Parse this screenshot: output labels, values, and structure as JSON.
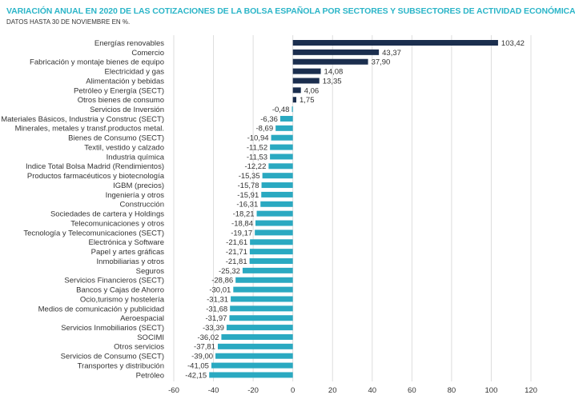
{
  "chart_data": {
    "type": "bar",
    "orientation": "horizontal",
    "title": "VARIACIÓN ANUAL EN 2020 DE LAS COTIZACIONES DE LA BOLSA ESPAÑOLA POR SECTORES Y SUBSECTORES DE ACTIVIDAD ECONÓMICA",
    "subtitle": "DATOS HASTA 30 DE NOVIEMBRE EN %.",
    "xlabel": "",
    "ylabel": "",
    "xlim": [
      -60,
      120
    ],
    "xticks": [
      "-60",
      "-40",
      "-20",
      "0",
      "20",
      "40",
      "60",
      "80",
      "100",
      "120"
    ],
    "grid": true,
    "colors": {
      "positive": "#1b2e4e",
      "negative": "#2aa9c1"
    },
    "categories": [
      "Energías renovables",
      "Comercio",
      "Fabricación y montaje bienes de equipo",
      "Electricidad y gas",
      "Alimentación y bebidas",
      "Petróleo y Energía (SECT)",
      "Otros bienes de consumo",
      "Servicios de Inversión",
      "Materiales Básicos, Industria y Construc (SECT)",
      "Minerales, metales y transf.productos metal.",
      "Bienes de Consumo (SECT)",
      "Textil, vestido y calzado",
      "Industria química",
      "Indice Total Bolsa Madrid (Rendimientos)",
      "Productos farmacéuticos y biotecnología",
      "IGBM (precios)",
      "Ingeniería y otros",
      "Construcción",
      "Sociedades de cartera y Holdings",
      "Telecomunicaciones y otros",
      "Tecnología y Telecomunicaciones (SECT)",
      "Electrónica y Software",
      "Papel y artes gráficas",
      "Inmobiliarias y otros",
      "Seguros",
      "Servicios Financieros (SECT)",
      "Bancos y Cajas de Ahorro",
      "Ocio,turismo y hostelería",
      "Medios de comunicación y publicidad",
      "Aeroespacial",
      "Servicios Inmobiliarios (SECT)",
      "SOCIMI",
      "Otros servicios",
      "Servicios de Consumo (SECT)",
      "Transportes y distribución",
      "Petróleo"
    ],
    "values": [
      103.42,
      43.37,
      37.9,
      14.08,
      13.35,
      4.06,
      1.75,
      -0.48,
      -6.36,
      -8.69,
      -10.94,
      -11.52,
      -11.53,
      -12.22,
      -15.35,
      -15.78,
      -15.91,
      -16.31,
      -18.21,
      -18.84,
      -19.17,
      -21.61,
      -21.71,
      -21.81,
      -25.32,
      -28.86,
      -30.01,
      -31.31,
      -31.68,
      -31.97,
      -33.39,
      -36.02,
      -37.81,
      -39.0,
      -41.05,
      -42.15
    ],
    "value_labels": [
      "103,42",
      "43,37",
      "37,90",
      "14,08",
      "13,35",
      "4,06",
      "1,75",
      "-0,48",
      "-6,36",
      "-8,69",
      "-10,94",
      "-11,52",
      "-11,53",
      "-12,22",
      "-15,35",
      "-15,78",
      "-15,91",
      "-16,31",
      "-18,21",
      "-18,84",
      "-19,17",
      "-21,61",
      "-21,71",
      "-21,81",
      "-25,32",
      "-28,86",
      "-30,01",
      "-31,31",
      "-31,68",
      "-31,97",
      "-33,39",
      "-36,02",
      "-37,81",
      "-39,00",
      "-41,05",
      "-42,15"
    ]
  }
}
